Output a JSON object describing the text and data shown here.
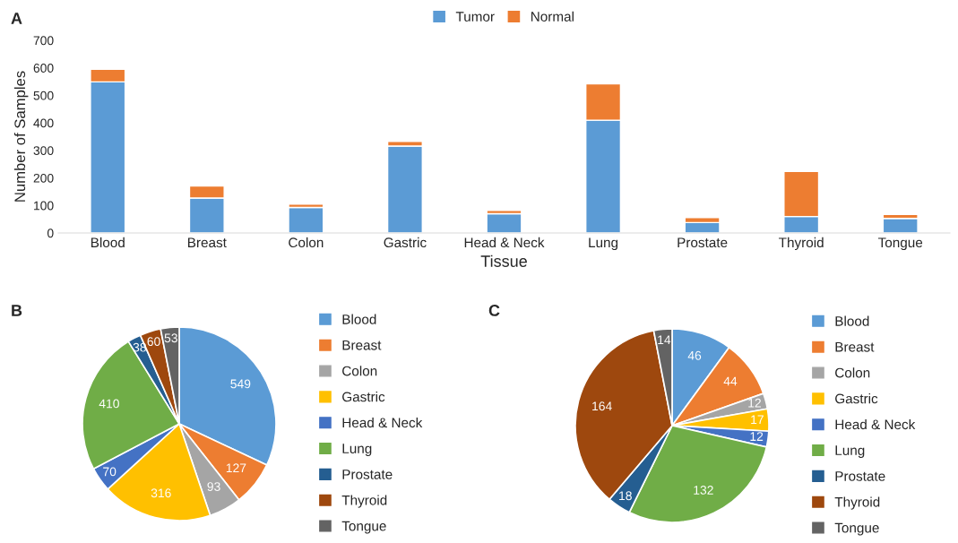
{
  "chart_data": [
    {
      "type": "bar",
      "stacked": true,
      "annotations": [
        "A"
      ],
      "xlabel": "Tissue",
      "ylabel": "Number of Samples",
      "categories": [
        "Blood",
        "Breast",
        "Colon",
        "Gastric",
        "Head & Neck",
        "Lung",
        "Prostate",
        "Thyroid",
        "Tongue"
      ],
      "series": [
        {
          "name": "Tumor",
          "color": "#5b9bd5",
          "values": [
            549,
            127,
            93,
            316,
            70,
            410,
            38,
            60,
            53
          ]
        },
        {
          "name": "Normal",
          "color": "#ed7d31",
          "values": [
            46,
            44,
            12,
            17,
            12,
            132,
            18,
            164,
            14
          ]
        }
      ],
      "ylim": [
        0,
        700
      ],
      "yticks": [
        0,
        100,
        200,
        300,
        400,
        500,
        600,
        700
      ],
      "grid": false,
      "legend": "top"
    },
    {
      "type": "pie",
      "annotations": [
        "B"
      ],
      "data_labels": true,
      "legend": "right",
      "categories": [
        "Blood",
        "Breast",
        "Colon",
        "Gastric",
        "Head & Neck",
        "Lung",
        "Prostate",
        "Thyroid",
        "Tongue"
      ],
      "values": [
        549,
        127,
        93,
        316,
        70,
        410,
        38,
        60,
        53
      ],
      "colors": [
        "#5b9bd5",
        "#ed7d31",
        "#a5a5a5",
        "#ffc000",
        "#4472c4",
        "#70ad47",
        "#255e91",
        "#9e480e",
        "#636363"
      ]
    },
    {
      "type": "pie",
      "annotations": [
        "C"
      ],
      "data_labels": true,
      "legend": "right",
      "categories": [
        "Blood",
        "Breast",
        "Colon",
        "Gastric",
        "Head & Neck",
        "Lung",
        "Prostate",
        "Thyroid",
        "Tongue"
      ],
      "values": [
        46,
        44,
        12,
        17,
        12,
        132,
        18,
        164,
        14
      ],
      "colors": [
        "#5b9bd5",
        "#ed7d31",
        "#a5a5a5",
        "#ffc000",
        "#4472c4",
        "#70ad47",
        "#255e91",
        "#9e480e",
        "#636363"
      ]
    }
  ]
}
